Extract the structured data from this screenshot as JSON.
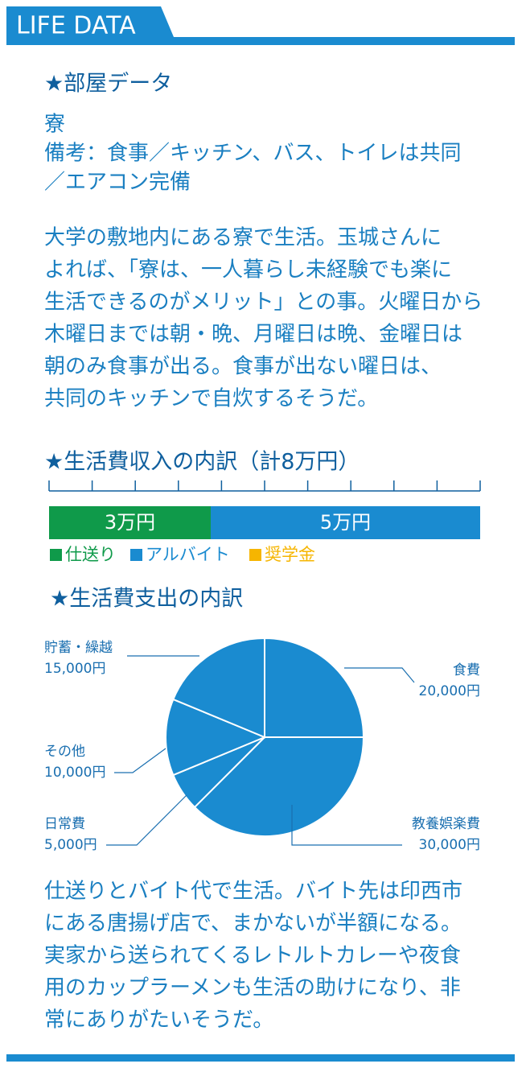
{
  "header": {
    "title": "LIFE DATA"
  },
  "room": {
    "heading": "★部屋データ",
    "lines": [
      "寮",
      "備考：食事／キッチン、バス、トイレは共同",
      "／エアコン完備"
    ]
  },
  "paragraph1": [
    "大学の敷地内にある寮で生活。玉城さんに",
    "よれば、「寮は、一人暮らし未経験でも楽に",
    "生活できるのがメリット」との事。火曜日から",
    "木曜日までは朝・晩、月曜日は晩、金曜日は",
    "朝のみ食事が出る。食事が出ない曜日は、",
    "共同のキッチンで自炊するそうだ。"
  ],
  "chart_data": [
    {
      "type": "stacked-bar",
      "title": "★生活費収入の内訳（計8万円）",
      "xlim": [
        0,
        8
      ],
      "xticks": [
        0,
        0.8,
        1.6,
        2.4,
        3.2,
        4,
        4.8,
        5.6,
        6.4,
        7.2,
        8
      ],
      "series": [
        {
          "name": "仕送り",
          "color": "#0f9a4a",
          "values": [
            3
          ],
          "value_labels": [
            "3万円"
          ]
        },
        {
          "name": "アルバイト",
          "color": "#1a8bd0",
          "values": [
            5
          ],
          "value_labels": [
            "5万円"
          ]
        },
        {
          "name": "奨学金",
          "color": "#f6b500",
          "values": [
            0
          ]
        }
      ]
    },
    {
      "type": "pie",
      "title": "★生活費支出の内訳",
      "color": "#1a8bd0",
      "categories": [
        "食費",
        "教養娯楽費",
        "日常費",
        "その他",
        "貯蓄・繰越"
      ],
      "values": [
        20000,
        30000,
        5000,
        10000,
        15000
      ],
      "value_labels": [
        "20,000円",
        "30,000円",
        "5,000円",
        "10,000円",
        "15,000円"
      ]
    }
  ],
  "paragraph2": [
    "仕送りとバイト代で生活。バイト先は印西市",
    "にある唐揚げ店で、まかないが半額になる。",
    "実家から送られてくるレトルトカレーや夜食",
    "用のカップラーメンも生活の助けになり、非",
    "常にありがたいそうだ。"
  ]
}
